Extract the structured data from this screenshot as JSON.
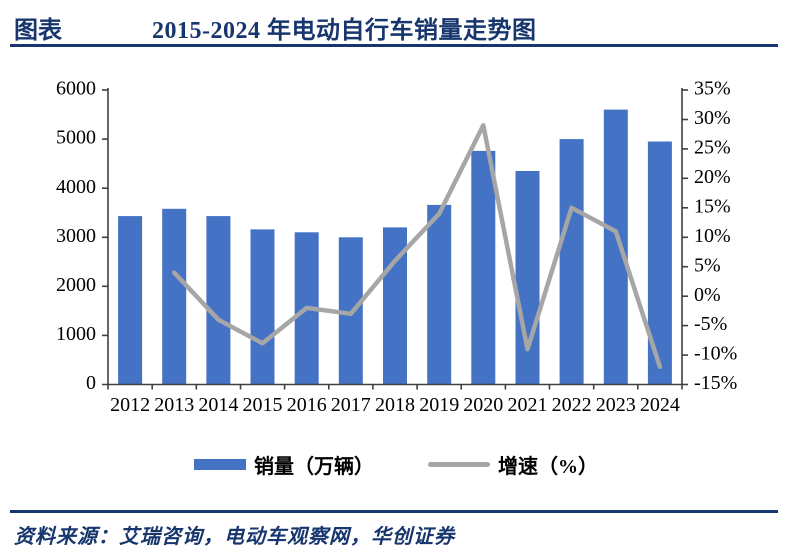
{
  "header": {
    "tag": "图表",
    "title": "2015-2024 年电动自行车销量走势图"
  },
  "legend": {
    "sales_label": "销量（万辆）",
    "growth_label": "增速（%）"
  },
  "footer": {
    "source": "资料来源：艾瑞咨询，电动车观察网，华创证券"
  },
  "colors": {
    "navy": "#17366D",
    "bar": "#4472C4",
    "line": "#A6A6A6",
    "axis": "#404040",
    "label": "#000000"
  },
  "chart_data": {
    "type": "bar",
    "subtype": "bar+line combo, dual axis",
    "title": "2015-2024 年电动自行车销量走势图",
    "categories": [
      "2012",
      "2013",
      "2014",
      "2015",
      "2016",
      "2017",
      "2018",
      "2019",
      "2020",
      "2021",
      "2022",
      "2023",
      "2024"
    ],
    "series": [
      {
        "name": "销量（万辆）",
        "type": "bar",
        "axis": "left",
        "values": [
          3430,
          3580,
          3430,
          3160,
          3100,
          3000,
          3200,
          3660,
          4760,
          4350,
          5000,
          5600,
          4950
        ]
      },
      {
        "name": "增速（%）",
        "type": "line",
        "axis": "right",
        "values": [
          null,
          4,
          -4,
          -8,
          -2,
          -3,
          6,
          14,
          29,
          -9,
          15,
          11,
          -12
        ]
      }
    ],
    "left_axis": {
      "min": 0,
      "max": 6000,
      "tick_step": 1000,
      "ticks": [
        "6000",
        "5000",
        "4000",
        "3000",
        "2000",
        "1000",
        "0"
      ]
    },
    "right_axis": {
      "min": -15,
      "max": 35,
      "tick_step": 5,
      "ticks": [
        "35%",
        "30%",
        "25%",
        "20%",
        "15%",
        "10%",
        "5%",
        "0%",
        "-5%",
        "-10%",
        "-15%"
      ]
    },
    "grid": false,
    "legend_position": "bottom"
  }
}
